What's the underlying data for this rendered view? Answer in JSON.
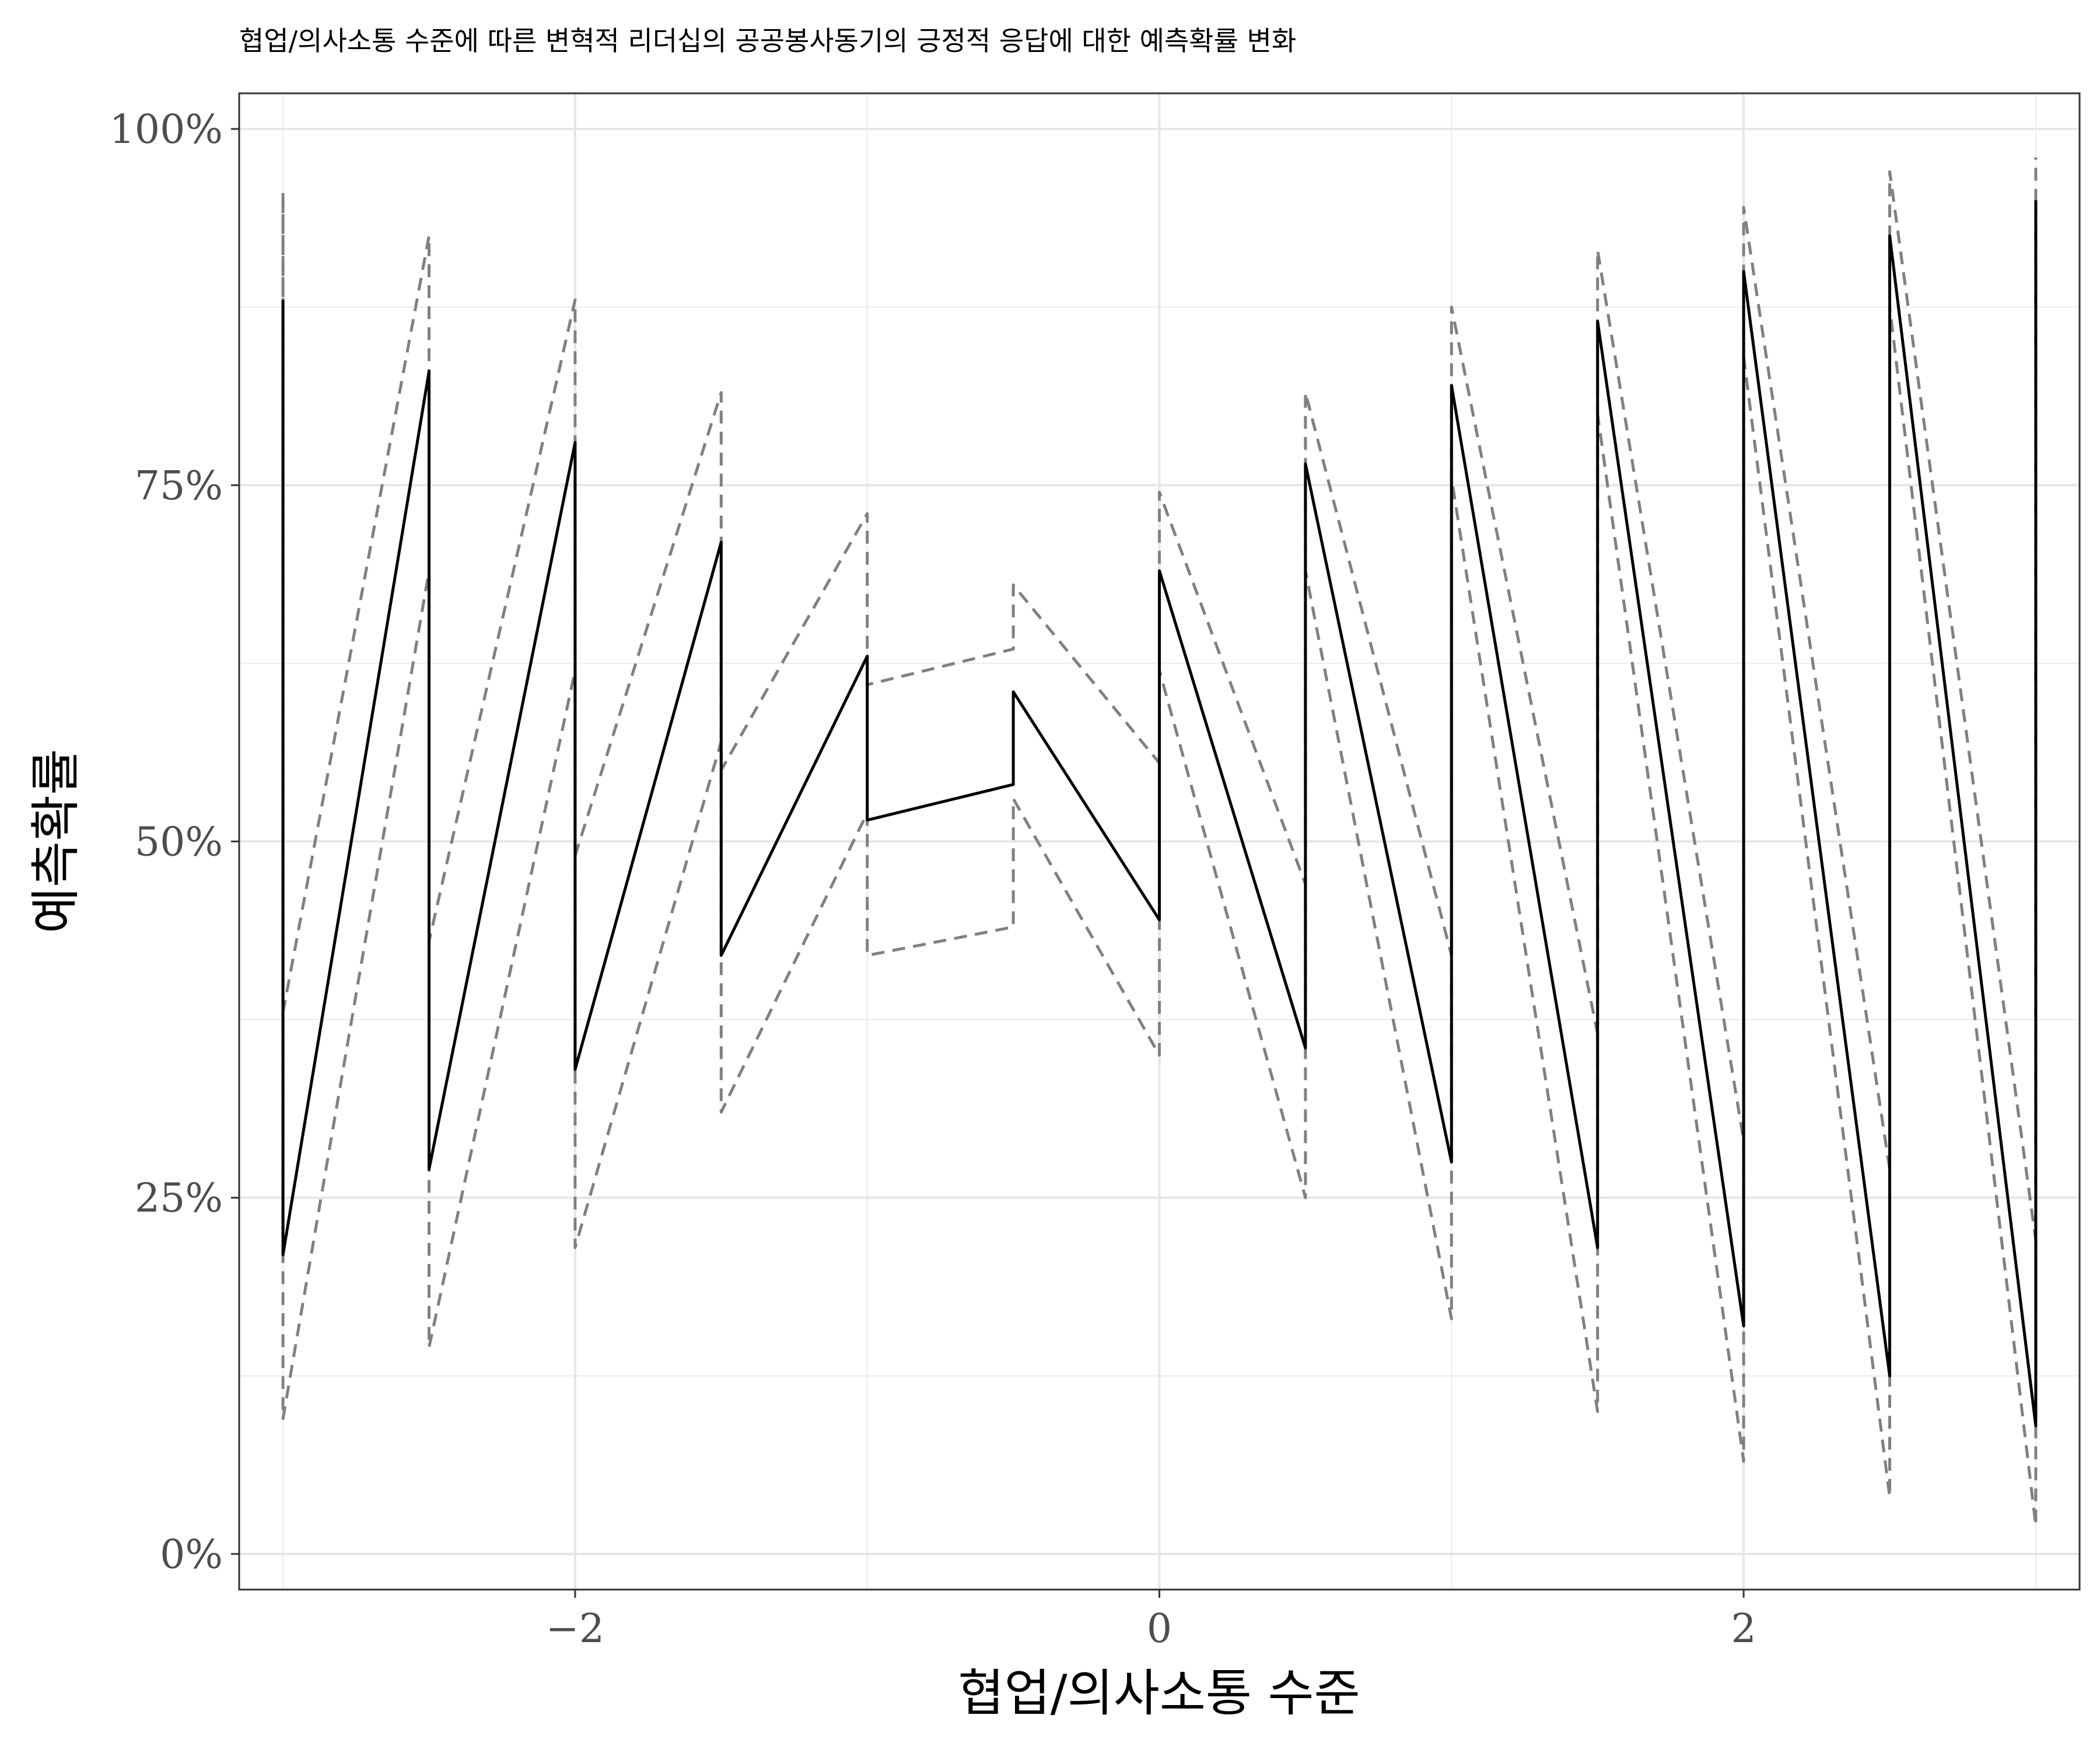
{
  "chart_data": {
    "type": "line",
    "title": "협업/의사소통 수준에 따른 변혁적 리더십의 공공봉사동기의 긍정적 응답에 대한 예측확률 변화",
    "xlabel": "협업/의사소통 수준",
    "ylabel": "예측확률",
    "xlim": [
      -3.15,
      3.15
    ],
    "ylim": [
      -0.025,
      1.025
    ],
    "x_ticks": [
      -2,
      0,
      2
    ],
    "x_tick_labels": [
      "−2",
      "0",
      "2"
    ],
    "y_ticks": [
      0,
      0.25,
      0.5,
      0.75,
      1
    ],
    "y_tick_labels": [
      "0%",
      "25%",
      "50%",
      "75%",
      "100%"
    ],
    "grid": true,
    "theme": "black-and-white",
    "series": [
      {
        "style": "solid",
        "color": "#000000",
        "points": [
          [
            -3.0,
            0.88
          ],
          [
            -3.0,
            0.21
          ],
          [
            -2.5,
            0.83
          ],
          [
            -2.5,
            0.27
          ],
          [
            -2.0,
            0.78
          ],
          [
            -2.0,
            0.34
          ],
          [
            -1.5,
            0.71
          ],
          [
            -1.5,
            0.42
          ],
          [
            -1.0,
            0.63
          ],
          [
            -1.0,
            0.515
          ],
          [
            -0.5,
            0.54
          ],
          [
            -0.5,
            0.605
          ],
          [
            0.0,
            0.445
          ],
          [
            0.0,
            0.69
          ],
          [
            0.5,
            0.355
          ],
          [
            0.5,
            0.765
          ],
          [
            1.0,
            0.275
          ],
          [
            1.0,
            0.82
          ],
          [
            1.5,
            0.215
          ],
          [
            1.5,
            0.865
          ],
          [
            2.0,
            0.16
          ],
          [
            2.0,
            0.9
          ],
          [
            2.5,
            0.125
          ],
          [
            2.5,
            0.925
          ],
          [
            3.0,
            0.09
          ],
          [
            3.0,
            0.95
          ]
        ]
      },
      {
        "style": "dashed",
        "color": "#808080",
        "points": [
          [
            -3.0,
            0.955
          ],
          [
            -3.0,
            0.38
          ],
          [
            -2.5,
            0.925
          ],
          [
            -2.5,
            0.43
          ],
          [
            -2.0,
            0.88
          ],
          [
            -2.0,
            0.49
          ],
          [
            -1.5,
            0.815
          ],
          [
            -1.5,
            0.55
          ],
          [
            -1.0,
            0.73
          ],
          [
            -1.0,
            0.61
          ],
          [
            -0.5,
            0.635
          ],
          [
            -0.5,
            0.68
          ],
          [
            0.0,
            0.555
          ],
          [
            0.0,
            0.745
          ],
          [
            0.5,
            0.47
          ],
          [
            0.5,
            0.815
          ],
          [
            1.0,
            0.42
          ],
          [
            1.0,
            0.875
          ],
          [
            1.5,
            0.365
          ],
          [
            1.5,
            0.915
          ],
          [
            2.0,
            0.29
          ],
          [
            2.0,
            0.945
          ],
          [
            2.5,
            0.27
          ],
          [
            2.5,
            0.97
          ],
          [
            3.0,
            0.22
          ],
          [
            3.0,
            0.98
          ]
        ]
      },
      {
        "style": "dashed",
        "color": "#808080",
        "points": [
          [
            -3.0,
            0.95
          ],
          [
            -3.0,
            0.095
          ],
          [
            -2.5,
            0.69
          ],
          [
            -2.5,
            0.145
          ],
          [
            -2.0,
            0.62
          ],
          [
            -2.0,
            0.215
          ],
          [
            -1.5,
            0.57
          ],
          [
            -1.5,
            0.31
          ],
          [
            -1.0,
            0.52
          ],
          [
            -1.0,
            0.42
          ],
          [
            -0.5,
            0.44
          ],
          [
            -0.5,
            0.53
          ],
          [
            0.0,
            0.35
          ],
          [
            0.0,
            0.62
          ],
          [
            0.5,
            0.25
          ],
          [
            0.5,
            0.69
          ],
          [
            1.0,
            0.165
          ],
          [
            1.0,
            0.755
          ],
          [
            1.5,
            0.1
          ],
          [
            1.5,
            0.8
          ],
          [
            2.0,
            0.065
          ],
          [
            2.0,
            0.84
          ],
          [
            2.5,
            0.04
          ],
          [
            2.5,
            0.875
          ],
          [
            3.0,
            0.02
          ],
          [
            3.0,
            0.94
          ]
        ]
      }
    ]
  }
}
